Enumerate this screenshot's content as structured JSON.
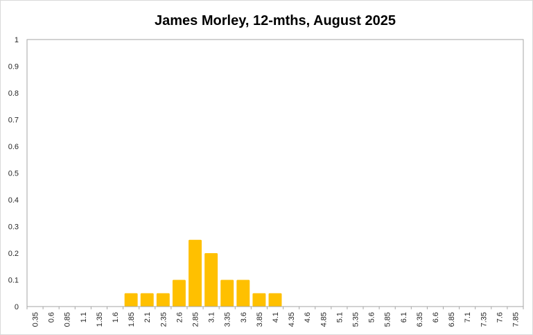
{
  "chart_data": {
    "type": "bar",
    "title": "James Morley, 12-mths, August 2025",
    "xlabel": "",
    "ylabel": "",
    "ylim": [
      0,
      1
    ],
    "yticks": [
      "0",
      "0.1",
      "0.2",
      "0.3",
      "0.4",
      "0.5",
      "0.6",
      "0.7",
      "0.8",
      "0.9",
      "1"
    ],
    "categories": [
      "0.35",
      "0.6",
      "0.85",
      "1.1",
      "1.35",
      "1.6",
      "1.85",
      "2.1",
      "2.35",
      "2.6",
      "2.85",
      "3.1",
      "3.35",
      "3.6",
      "3.85",
      "4.1",
      "4.35",
      "4.6",
      "4.85",
      "5.1",
      "5.35",
      "5.6",
      "5.85",
      "6.1",
      "6.35",
      "6.6",
      "6.85",
      "7.1",
      "7.35",
      "7.6",
      "7.85"
    ],
    "values": [
      0,
      0,
      0,
      0,
      0,
      0,
      0.05,
      0.05,
      0.05,
      0.1,
      0.25,
      0.2,
      0.1,
      0.1,
      0.05,
      0.05,
      0,
      0,
      0,
      0,
      0,
      0,
      0,
      0,
      0,
      0,
      0,
      0,
      0,
      0,
      0
    ],
    "bar_color": "#FFC000",
    "grid": false,
    "legend": "none"
  }
}
